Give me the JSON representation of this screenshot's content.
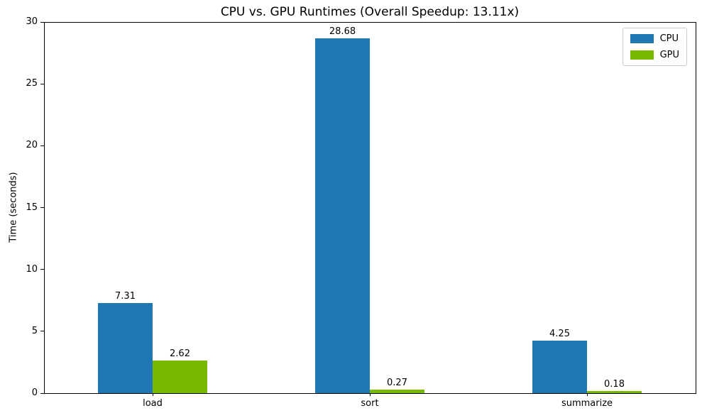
{
  "chart_data": {
    "type": "bar",
    "title": "CPU vs. GPU Runtimes (Overall Speedup: 13.11x)",
    "xlabel": "",
    "ylabel": "Time (seconds)",
    "categories": [
      "load",
      "sort",
      "summarize"
    ],
    "series": [
      {
        "name": "CPU",
        "color": "#1f77b4",
        "values": [
          7.31,
          28.68,
          4.25
        ]
      },
      {
        "name": "GPU",
        "color": "#76b900",
        "values": [
          2.62,
          0.27,
          0.18
        ]
      }
    ],
    "bar_value_labels": {
      "CPU": [
        "7.31",
        "28.68",
        "4.25"
      ],
      "GPU": [
        "2.62",
        "0.27",
        "0.18"
      ]
    },
    "ylim": [
      0,
      30
    ],
    "yticks": [
      0,
      5,
      10,
      15,
      20,
      25,
      30
    ],
    "legend_position": "upper right",
    "grid": false,
    "background_color": "#ffffff",
    "spine_color": "#000000"
  }
}
